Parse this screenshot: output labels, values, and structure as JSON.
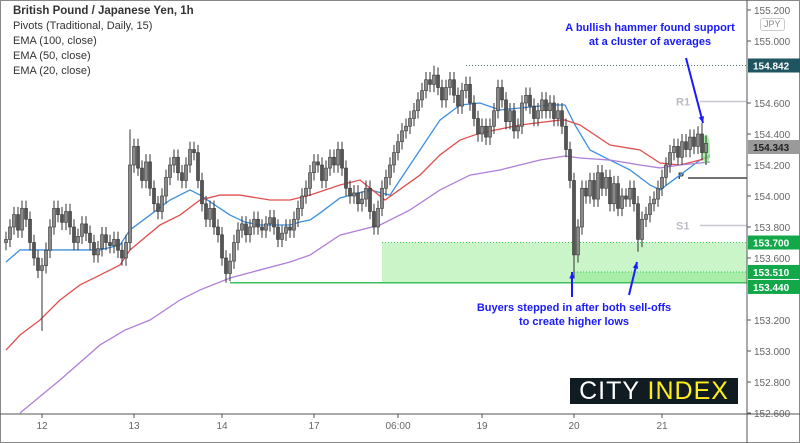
{
  "legend": {
    "title": "British Pound / Japanese Yen, 1h",
    "lines": [
      "Pivots (Traditional, Daily, 15)",
      "EMA (100, close)",
      "EMA (50, close)",
      "EMA (20, close)"
    ]
  },
  "currency_badge": "JPY",
  "annotations": {
    "top_note": [
      "A bullish hammer found support",
      "at a cluster of averages"
    ],
    "bottom_note": [
      "Buyers stepped in after both sell-offs",
      "to create higher lows"
    ]
  },
  "logo": {
    "part1": "CITY",
    "part2": " INDEX"
  },
  "chart_data": {
    "type": "candlestick",
    "interval": "1h",
    "ylim": [
      152.6,
      155.25
    ],
    "y_ticks": [
      "155.200",
      "155.000",
      "154.600",
      "154.400",
      "154.200",
      "154.000",
      "153.800",
      "153.600",
      "153.200",
      "153.000",
      "152.800",
      "152.600"
    ],
    "x_ticks": [
      {
        "index": 9,
        "label": "12"
      },
      {
        "index": 32,
        "label": "13"
      },
      {
        "index": 54,
        "label": "14"
      },
      {
        "index": 77,
        "label": "17"
      },
      {
        "index": 98,
        "label": "06:00"
      },
      {
        "index": 119,
        "label": "19"
      },
      {
        "index": 142,
        "label": "20"
      },
      {
        "index": 164,
        "label": "21"
      }
    ],
    "first_open": 153.7,
    "closes": [
      153.72,
      153.8,
      153.88,
      153.78,
      153.92,
      153.85,
      153.7,
      153.6,
      153.52,
      153.55,
      153.65,
      153.8,
      153.92,
      153.88,
      153.83,
      153.9,
      153.8,
      153.7,
      153.74,
      153.82,
      153.76,
      153.7,
      153.62,
      153.66,
      153.75,
      153.7,
      153.68,
      153.72,
      153.65,
      153.6,
      153.7,
      154.2,
      154.32,
      154.18,
      154.1,
      154.22,
      154.05,
      153.95,
      153.9,
      154.0,
      154.12,
      154.2,
      154.25,
      154.15,
      154.1,
      154.2,
      154.3,
      154.28,
      154.1,
      153.95,
      153.85,
      153.92,
      153.8,
      153.75,
      153.6,
      153.5,
      153.58,
      153.7,
      153.78,
      153.82,
      153.75,
      153.8,
      153.85,
      153.8,
      153.78,
      153.82,
      153.86,
      153.8,
      153.72,
      153.76,
      153.8,
      153.78,
      153.85,
      153.92,
      154.0,
      154.05,
      154.15,
      154.22,
      154.2,
      154.1,
      154.18,
      154.25,
      154.2,
      154.3,
      154.18,
      154.05,
      154.0,
      154.02,
      153.95,
      153.98,
      154.05,
      153.9,
      153.8,
      153.92,
      154.05,
      154.12,
      154.2,
      154.28,
      154.35,
      154.42,
      154.45,
      154.5,
      154.55,
      154.62,
      154.68,
      154.75,
      154.72,
      154.78,
      154.7,
      154.62,
      154.7,
      154.75,
      154.65,
      154.58,
      154.68,
      154.72,
      154.6,
      154.5,
      154.4,
      154.45,
      154.38,
      154.45,
      154.55,
      154.7,
      154.62,
      154.48,
      154.55,
      154.42,
      154.45,
      154.6,
      154.65,
      154.58,
      154.5,
      154.55,
      154.62,
      154.55,
      154.6,
      154.5,
      154.55,
      154.45,
      154.3,
      154.1,
      153.62,
      153.8,
      154.05,
      154.0,
      154.1,
      153.98,
      154.15,
      154.05,
      154.12,
      153.95,
      154.08,
      153.92,
      154.0,
      153.98,
      154.05,
      153.95,
      153.72,
      153.85,
      153.88,
      153.95,
      153.98,
      154.05,
      154.12,
      154.2,
      154.28,
      154.32,
      154.25,
      154.35,
      154.3,
      154.38,
      154.32,
      154.4,
      154.28,
      154.34
    ],
    "notable_highs": {
      "31": 154.43,
      "107": 154.84,
      "174": 154.47
    },
    "notable_lows": {
      "9": 153.13,
      "55": 153.44,
      "142": 153.47,
      "158": 153.64,
      "175": 154.2
    },
    "ema": [
      {
        "name": "EMA (20, close)",
        "color": "#3d8fe0",
        "points": [
          [
            0,
            153.574
          ],
          [
            3.5,
            153.652
          ],
          [
            6,
            153.652
          ],
          [
            9.75,
            153.652
          ],
          [
            13.5,
            153.652
          ],
          [
            23.5,
            153.652
          ],
          [
            28.5,
            153.684
          ],
          [
            31,
            153.781
          ],
          [
            36,
            153.877
          ],
          [
            41,
            153.974
          ],
          [
            46,
            154.039
          ],
          [
            48.5,
            154.006
          ],
          [
            56,
            153.877
          ],
          [
            59.75,
            153.832
          ],
          [
            63.5,
            153.813
          ],
          [
            71,
            153.813
          ],
          [
            73.5,
            153.832
          ],
          [
            76,
            153.845
          ],
          [
            78.5,
            153.89
          ],
          [
            83.5,
            153.987
          ],
          [
            91,
            154.039
          ],
          [
            96,
            154.006
          ],
          [
            98.5,
            154.103
          ],
          [
            103.5,
            154.297
          ],
          [
            108.5,
            154.49
          ],
          [
            113.5,
            154.587
          ],
          [
            118.5,
            154.6
          ],
          [
            123.5,
            154.555
          ],
          [
            128.5,
            154.568
          ],
          [
            136,
            154.587
          ],
          [
            139.75,
            154.587
          ],
          [
            142.25,
            154.458
          ],
          [
            146,
            154.297
          ],
          [
            151,
            154.232
          ],
          [
            156,
            154.168
          ],
          [
            161,
            154.071
          ],
          [
            163.5,
            154.039
          ],
          [
            168.5,
            154.135
          ],
          [
            173.5,
            154.232
          ],
          [
            176,
            154.265
          ]
        ]
      },
      {
        "name": "EMA (50, close)",
        "color": "#e05050",
        "points": [
          [
            0,
            153.006
          ],
          [
            3.5,
            153.103
          ],
          [
            8.5,
            153.2
          ],
          [
            13.5,
            153.329
          ],
          [
            18.5,
            153.426
          ],
          [
            23.5,
            153.49
          ],
          [
            28.5,
            153.555
          ],
          [
            31,
            153.652
          ],
          [
            38.5,
            153.813
          ],
          [
            43.5,
            153.877
          ],
          [
            48.5,
            153.974
          ],
          [
            53.5,
            154.006
          ],
          [
            58.5,
            154.006
          ],
          [
            66,
            153.974
          ],
          [
            71,
            153.974
          ],
          [
            76,
            154.006
          ],
          [
            83.5,
            154.071
          ],
          [
            88.5,
            154.103
          ],
          [
            94.75,
            153.974
          ],
          [
            103.5,
            154.135
          ],
          [
            108.5,
            154.265
          ],
          [
            113.5,
            154.361
          ],
          [
            118.5,
            154.406
          ],
          [
            128.5,
            154.458
          ],
          [
            138.5,
            154.49
          ],
          [
            139.75,
            154.49
          ],
          [
            143.5,
            154.458
          ],
          [
            151,
            154.329
          ],
          [
            158.5,
            154.297
          ],
          [
            163.5,
            154.213
          ],
          [
            168.5,
            154.2
          ],
          [
            173.5,
            154.232
          ],
          [
            176,
            154.252
          ]
        ]
      },
      {
        "name": "EMA (100, close)",
        "color": "#b07fd8",
        "points": [
          [
            3.5,
            152.6
          ],
          [
            13.5,
            152.813
          ],
          [
            23.5,
            153.039
          ],
          [
            29.75,
            153.135
          ],
          [
            36,
            153.2
          ],
          [
            43.5,
            153.329
          ],
          [
            48.5,
            153.394
          ],
          [
            56,
            153.471
          ],
          [
            63.5,
            153.523
          ],
          [
            71,
            153.574
          ],
          [
            76,
            153.619
          ],
          [
            83.5,
            153.748
          ],
          [
            93.5,
            153.813
          ],
          [
            101,
            153.91
          ],
          [
            108.5,
            154.039
          ],
          [
            116,
            154.135
          ],
          [
            123.5,
            154.168
          ],
          [
            133.5,
            154.232
          ],
          [
            139.75,
            154.258
          ],
          [
            143.5,
            154.245
          ],
          [
            151,
            154.232
          ],
          [
            158.5,
            154.2
          ],
          [
            163.5,
            154.181
          ],
          [
            168.5,
            154.2
          ],
          [
            173.5,
            154.213
          ],
          [
            176,
            154.219
          ]
        ]
      }
    ],
    "pivots": [
      {
        "label": "R1",
        "price": 154.61,
        "color": "#c8c8d0"
      },
      {
        "label": "P",
        "price": 154.116,
        "color": "#222222"
      },
      {
        "label": "S1",
        "price": 153.81,
        "color": "#c8c8d0"
      }
    ],
    "support_zone": {
      "from_index": 94,
      "upper": 153.7,
      "lower": 153.44,
      "color": "#c9f5c9"
    },
    "support_line": {
      "from_index": 56,
      "price": 153.44
    },
    "dotted_levels": [
      {
        "from_index": 115,
        "price": 154.842,
        "color": "#557777"
      },
      {
        "from_index": 142,
        "price": 153.51,
        "color": "#33cc55"
      }
    ],
    "price_labels": [
      {
        "value": "154.842",
        "price": 154.842,
        "bg": "#1f5560",
        "fg": "#ffffff"
      },
      {
        "value": "154.343",
        "price": 154.343,
        "bg": "#9a9a9a",
        "fg": "#222222"
      },
      {
        "value": "153.700",
        "price": 153.7,
        "bg": "#12a84a",
        "fg": "#ffffff"
      },
      {
        "value": "153.510",
        "price": 153.51,
        "bg": "#12a84a",
        "fg": "#ffffff"
      },
      {
        "value": "153.440",
        "price": 153.44,
        "bg": "#12a84a",
        "fg": "#ffffff"
      }
    ],
    "hammer_index": 175
  }
}
